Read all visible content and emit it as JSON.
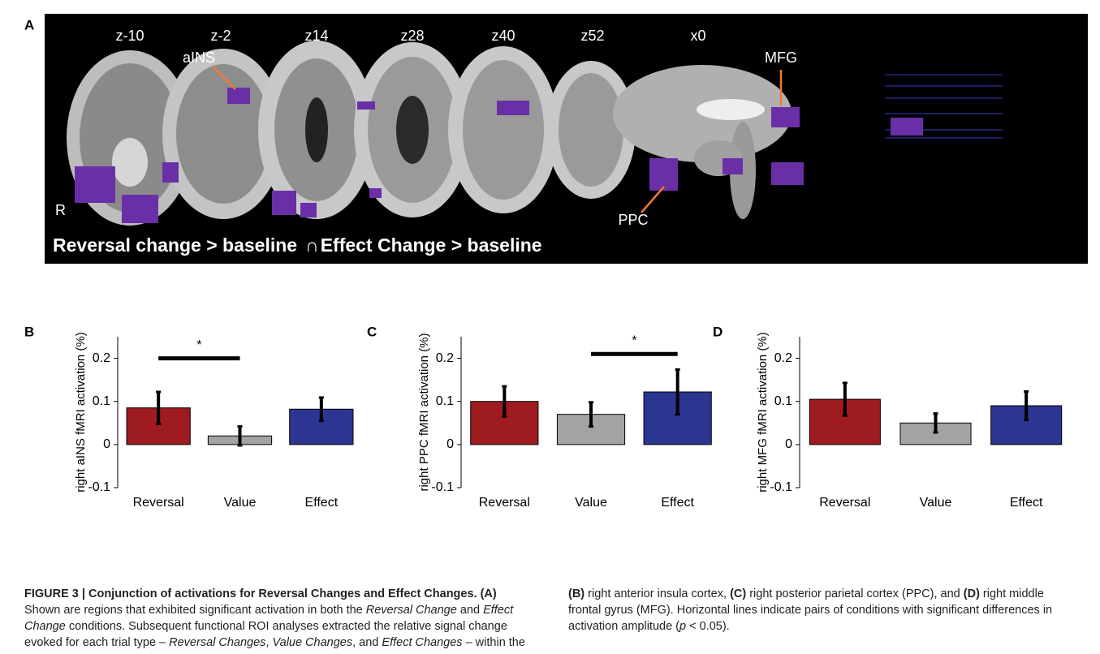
{
  "panel_a": {
    "letter": "A",
    "slices": [
      "z-10",
      "z-2",
      "z14",
      "z28",
      "z40",
      "z52",
      "x0"
    ],
    "annotations": [
      "aINS",
      "MFG",
      "PPC",
      "R"
    ],
    "contrast_left": "Reversal change > baseline",
    "conjunction": "∩",
    "contrast_right": "Effect Change > baseline"
  },
  "chart_data": [
    {
      "type": "bar",
      "panel": "B",
      "ylabel": "right aINS fMRI activation (%)",
      "categories": [
        "Reversal",
        "Value",
        "Effect"
      ],
      "values": [
        0.085,
        0.02,
        0.082
      ],
      "errors": [
        0.037,
        0.022,
        0.027
      ],
      "colors": [
        "#9e1b20",
        "#a3a3a3",
        "#2c3591"
      ],
      "ylim": [
        -0.1,
        0.25
      ],
      "yticks": [
        -0.1,
        0,
        0.1,
        0.2
      ],
      "significance": {
        "pair": [
          0,
          1
        ],
        "value": 0.2,
        "label": "*"
      }
    },
    {
      "type": "bar",
      "panel": "C",
      "ylabel": "right PPC fMRI activation (%)",
      "categories": [
        "Reversal",
        "Value",
        "Effect"
      ],
      "values": [
        0.1,
        0.07,
        0.122
      ],
      "errors": [
        0.035,
        0.028,
        0.052
      ],
      "colors": [
        "#9e1b20",
        "#a3a3a3",
        "#2c3591"
      ],
      "ylim": [
        -0.1,
        0.25
      ],
      "yticks": [
        -0.1,
        0,
        0.1,
        0.2
      ],
      "significance": {
        "pair": [
          1,
          2
        ],
        "value": 0.21,
        "label": "*"
      }
    },
    {
      "type": "bar",
      "panel": "D",
      "ylabel": "right MFG fMRI activation (%)",
      "categories": [
        "Reversal",
        "Value",
        "Effect"
      ],
      "values": [
        0.105,
        0.05,
        0.09
      ],
      "errors": [
        0.038,
        0.022,
        0.033
      ],
      "colors": [
        "#9e1b20",
        "#a3a3a3",
        "#2c3591"
      ],
      "ylim": [
        -0.1,
        0.25
      ],
      "yticks": [
        -0.1,
        0,
        0.1,
        0.2
      ]
    }
  ],
  "caption": {
    "segments": [
      "FIGURE 3 | Conjunction of activations for Reversal Changes and Effect Changes.",
      " (A)",
      " Shown are regions that exhibited significant activation in both the ",
      "Reversal Change",
      " and ",
      "Effect Change",
      " conditions. Subsequent functional ROI analyses extracted the relative signal change evoked for each trial type – ",
      "Reversal Changes",
      ", ",
      "Value Changes",
      ", and ",
      "Effect Changes",
      " – within the ",
      "(B)",
      " right anterior insula cortex, ",
      "(C)",
      " right posterior parietal cortex (PPC), and ",
      "(D)",
      " right middle frontal gyrus (MFG). Horizontal lines indicate pairs of conditions with significant differences in activation amplitude (",
      "p",
      " < 0.05)."
    ]
  }
}
